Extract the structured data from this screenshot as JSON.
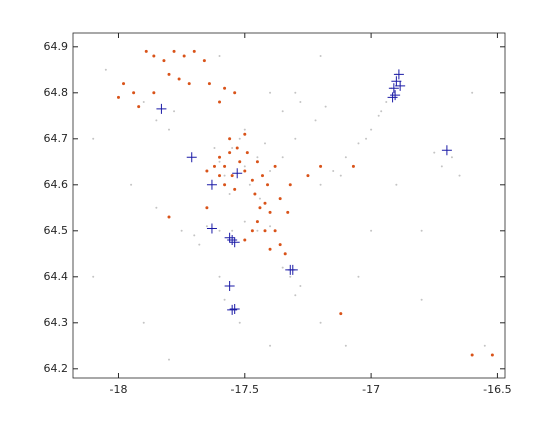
{
  "chart_data": {
    "type": "scatter",
    "xlim": [
      -18.18,
      -16.47
    ],
    "ylim": [
      64.18,
      64.93
    ],
    "xticks": [
      -18,
      -17.5,
      -17,
      -16.5
    ],
    "yticks": [
      64.2,
      64.3,
      64.4,
      64.5,
      64.6,
      64.7,
      64.8,
      64.9
    ],
    "box": true,
    "series": [
      {
        "color": "#c4c4c4",
        "marker": "dot",
        "x": [
          -17.6,
          -17.55,
          -17.5,
          -17.45,
          -17.52,
          -17.58,
          -17.48,
          -17.42,
          -17.4,
          -17.62,
          -17.5,
          -17.35,
          -17.3,
          -17.56,
          -17.44,
          -17.2,
          -17.15,
          -17.1,
          -17.05,
          -17.0,
          -16.97,
          -16.94,
          -16.92,
          -16.9,
          -17.02,
          -17.12,
          -16.96,
          -17.35,
          -17.28,
          -17.22,
          -17.3,
          -17.18,
          -17.4,
          -17.85,
          -17.8,
          -17.9,
          -17.78,
          -17.75,
          -17.7,
          -17.65,
          -17.6,
          -17.55,
          -17.5,
          -17.45,
          -17.4,
          -17.68,
          -17.32,
          -17.28,
          -17.35,
          -17.3,
          -17.58,
          -17.52,
          -17.6,
          -16.72,
          -16.68,
          -16.65,
          -16.75,
          -18.05,
          -17.95,
          -18.1,
          -17.9,
          -17.2,
          -17.0,
          -16.8,
          -16.6,
          -16.55,
          -16.6,
          -17.1,
          -17.8,
          -17.6,
          -17.2,
          -16.8,
          -17.05,
          -16.9,
          -17.85,
          -18.1,
          -17.4
        ],
        "y": [
          64.65,
          64.68,
          64.64,
          64.66,
          64.7,
          64.62,
          64.6,
          64.69,
          64.63,
          64.68,
          64.72,
          64.66,
          64.7,
          64.58,
          64.57,
          64.6,
          64.63,
          64.66,
          64.69,
          64.72,
          64.75,
          64.78,
          64.81,
          64.84,
          64.7,
          64.62,
          64.76,
          64.76,
          64.78,
          64.74,
          64.8,
          64.77,
          64.8,
          64.74,
          64.72,
          64.78,
          64.76,
          64.5,
          64.49,
          64.51,
          64.5,
          64.5,
          64.52,
          64.5,
          64.51,
          64.47,
          64.4,
          64.38,
          64.42,
          64.36,
          64.35,
          64.3,
          64.4,
          64.64,
          64.66,
          64.62,
          64.67,
          64.85,
          64.6,
          64.4,
          64.3,
          64.3,
          64.5,
          64.5,
          64.8,
          64.25,
          64.23,
          64.25,
          64.22,
          64.88,
          64.88,
          64.35,
          64.4,
          64.6,
          64.55,
          64.7,
          64.25
        ]
      },
      {
        "color": "#d95319",
        "marker": "dot-large",
        "x": [
          -17.89,
          -17.86,
          -17.82,
          -17.78,
          -17.74,
          -17.7,
          -17.66,
          -17.8,
          -17.72,
          -17.64,
          -17.58,
          -17.54,
          -17.98,
          -17.94,
          -17.92,
          -18.0,
          -17.86,
          -17.76,
          -17.6,
          -17.6,
          -17.58,
          -17.56,
          -17.55,
          -17.53,
          -17.52,
          -17.5,
          -17.49,
          -17.47,
          -17.45,
          -17.56,
          -17.6,
          -17.62,
          -17.65,
          -17.54,
          -17.5,
          -17.46,
          -17.43,
          -17.41,
          -17.38,
          -17.42,
          -17.58,
          -17.44,
          -17.4,
          -17.45,
          -17.38,
          -17.42,
          -17.36,
          -17.4,
          -17.34,
          -17.47,
          -17.5,
          -17.36,
          -17.33,
          -17.32,
          -17.25,
          -17.2,
          -17.07,
          -17.8,
          -17.12,
          -16.6,
          -16.52,
          -17.65
        ],
        "y": [
          64.89,
          64.88,
          64.87,
          64.89,
          64.88,
          64.89,
          64.87,
          64.84,
          64.82,
          64.82,
          64.81,
          64.8,
          64.82,
          64.8,
          64.77,
          64.79,
          64.8,
          64.83,
          64.78,
          64.66,
          64.64,
          64.67,
          64.62,
          64.68,
          64.65,
          64.63,
          64.67,
          64.61,
          64.65,
          64.7,
          64.62,
          64.64,
          64.63,
          64.59,
          64.71,
          64.58,
          64.62,
          64.6,
          64.64,
          64.56,
          64.6,
          64.55,
          64.54,
          64.52,
          64.5,
          64.5,
          64.47,
          64.46,
          64.45,
          64.5,
          64.48,
          64.57,
          64.54,
          64.6,
          64.62,
          64.64,
          64.64,
          64.53,
          64.32,
          64.23,
          64.23,
          64.55
        ]
      },
      {
        "color": "#1a1aa6",
        "marker": "plus",
        "x": [
          -17.83,
          -17.71,
          -17.63,
          -17.53,
          -17.63,
          -17.56,
          -17.55,
          -17.54,
          -17.56,
          -17.55,
          -17.54,
          -17.32,
          -17.31,
          -16.89,
          -16.9,
          -16.91,
          -16.885,
          -16.905,
          -16.915,
          -16.7
        ],
        "y": [
          64.765,
          64.66,
          64.6,
          64.625,
          64.505,
          64.485,
          64.48,
          64.475,
          64.38,
          64.328,
          64.33,
          64.415,
          64.415,
          64.84,
          64.825,
          64.81,
          64.815,
          64.795,
          64.79,
          64.675
        ]
      }
    ]
  }
}
